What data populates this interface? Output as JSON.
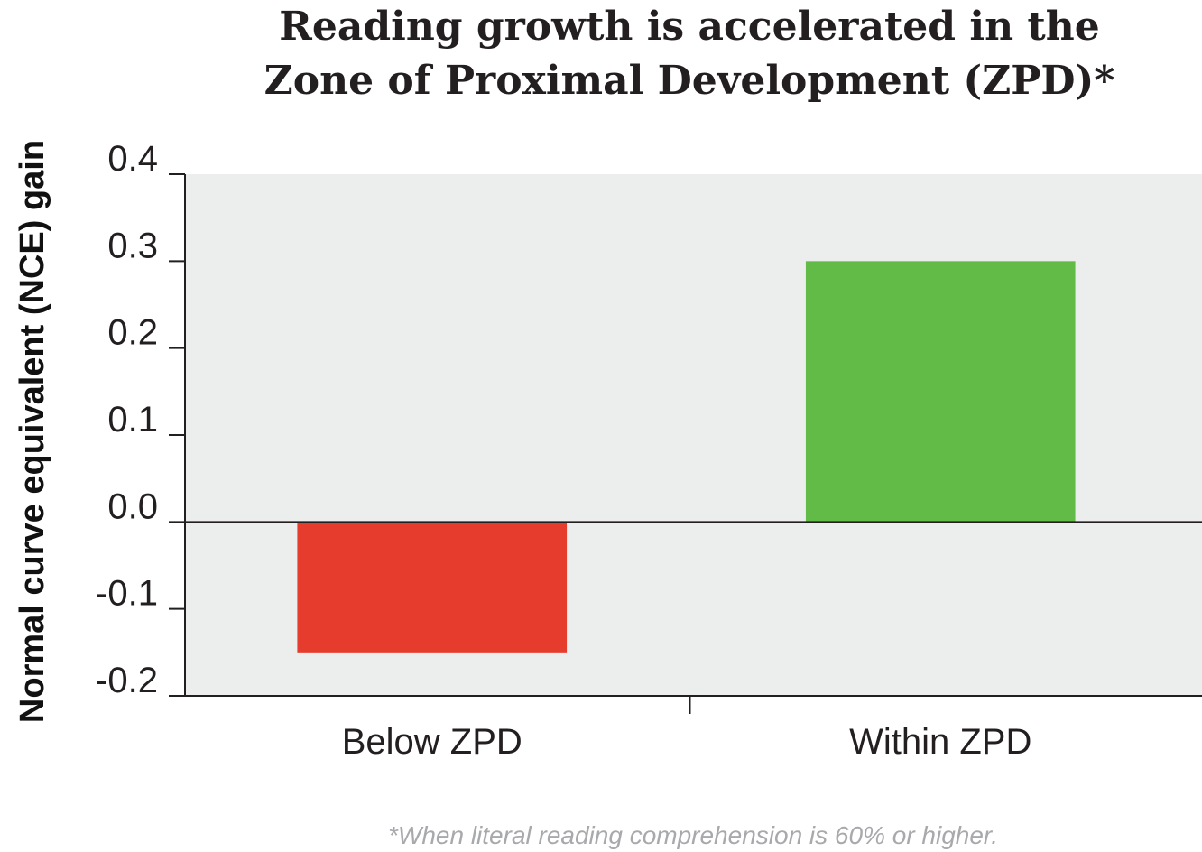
{
  "chart_data": {
    "type": "bar",
    "title_lines": [
      "Reading growth is accelerated in the",
      "Zone of Proximal Development (ZPD)*"
    ],
    "ylabel": "Normal curve equivalent (NCE) gain",
    "xlabel": "",
    "categories": [
      "Below ZPD",
      "Within ZPD"
    ],
    "values": [
      -0.15,
      0.3
    ],
    "bar_colors": [
      "#e63c2e",
      "#62bb46"
    ],
    "ylim": [
      -0.2,
      0.4
    ],
    "yticks": [
      0.4,
      0.3,
      0.2,
      0.1,
      0.0,
      -0.1,
      -0.2
    ],
    "ytick_labels": [
      "0.4",
      "0.3",
      "0.2",
      "0.1",
      "0.0",
      "-0.1",
      "-0.2"
    ],
    "plot_background": "#eceeed",
    "grid": false,
    "legend": false,
    "footnote": "*When literal reading comprehension is 60% or higher."
  }
}
